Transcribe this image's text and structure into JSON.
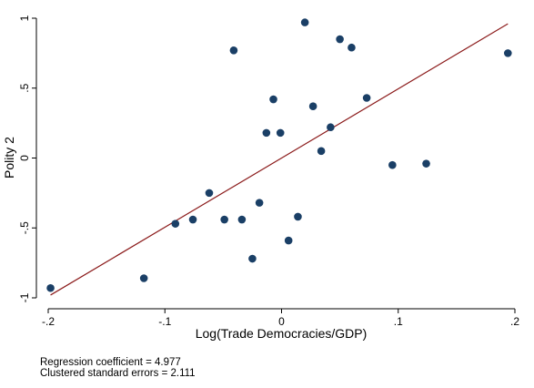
{
  "chart_data": {
    "type": "scatter",
    "xlabel": "Log(Trade Democracies/GDP)",
    "ylabel": "Polity 2",
    "xlim": [
      -0.2,
      0.2
    ],
    "ylim": [
      -1,
      1
    ],
    "x_ticks": [
      {
        "value": -0.2,
        "label": "-.2"
      },
      {
        "value": -0.1,
        "label": "-.1"
      },
      {
        "value": 0,
        "label": "0"
      },
      {
        "value": 0.1,
        "label": ".1"
      },
      {
        "value": 0.2,
        "label": ".2"
      }
    ],
    "y_ticks": [
      {
        "value": -1,
        "label": "-1"
      },
      {
        "value": -0.5,
        "label": "-.5"
      },
      {
        "value": 0,
        "label": "0"
      },
      {
        "value": 0.5,
        "label": ".5"
      },
      {
        "value": 1,
        "label": "1"
      }
    ],
    "grid": false,
    "points": [
      {
        "x": -0.198,
        "y": -0.93
      },
      {
        "x": -0.118,
        "y": -0.86
      },
      {
        "x": -0.091,
        "y": -0.47
      },
      {
        "x": -0.076,
        "y": -0.44
      },
      {
        "x": -0.062,
        "y": -0.25
      },
      {
        "x": -0.049,
        "y": -0.44
      },
      {
        "x": -0.041,
        "y": 0.77
      },
      {
        "x": -0.034,
        "y": -0.44
      },
      {
        "x": -0.025,
        "y": -0.72
      },
      {
        "x": -0.019,
        "y": -0.32
      },
      {
        "x": -0.013,
        "y": 0.18
      },
      {
        "x": -0.007,
        "y": 0.42
      },
      {
        "x": -0.001,
        "y": 0.18
      },
      {
        "x": 0.006,
        "y": -0.59
      },
      {
        "x": 0.014,
        "y": -0.42
      },
      {
        "x": 0.02,
        "y": 0.97
      },
      {
        "x": 0.027,
        "y": 0.37
      },
      {
        "x": 0.034,
        "y": 0.05
      },
      {
        "x": 0.042,
        "y": 0.22
      },
      {
        "x": 0.05,
        "y": 0.85
      },
      {
        "x": 0.06,
        "y": 0.79
      },
      {
        "x": 0.073,
        "y": 0.43
      },
      {
        "x": 0.095,
        "y": -0.05
      },
      {
        "x": 0.124,
        "y": -0.04
      },
      {
        "x": 0.194,
        "y": 0.75
      }
    ],
    "fit_line": {
      "x": [
        -0.198,
        0.194
      ],
      "y": [
        -0.98,
        0.96
      ],
      "color": "#8b1a1a"
    },
    "point_color": "#1a3f66",
    "annotations": [
      "Regression coefficient = 4.977",
      "Clustered standard errors = 2.111"
    ]
  }
}
